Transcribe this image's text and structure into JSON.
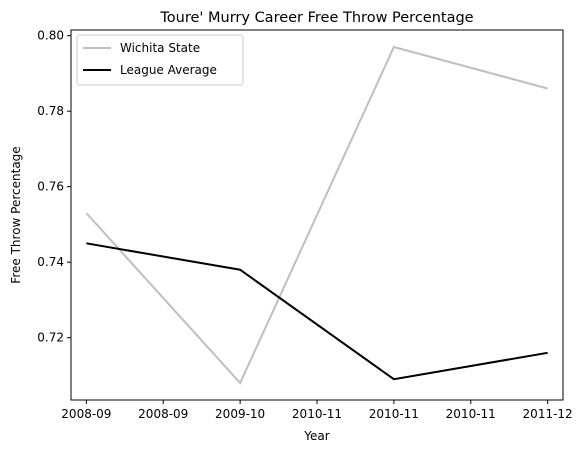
{
  "chart_data": {
    "type": "line",
    "title": "Toure' Murry Career Free Throw Percentage",
    "xlabel": "Year",
    "ylabel": "Free Throw Percentage",
    "x": [
      0,
      1,
      2,
      3
    ],
    "xlim": [
      -0.1,
      3.1
    ],
    "ylim": [
      0.7035,
      0.8015
    ],
    "x_ticks": [
      {
        "value": 0,
        "label": "2008-09"
      },
      {
        "value": 0.5,
        "label": "2008-09"
      },
      {
        "value": 1,
        "label": "2009-10"
      },
      {
        "value": 1.5,
        "label": "2010-11"
      },
      {
        "value": 2,
        "label": "2010-11"
      },
      {
        "value": 2.5,
        "label": "2010-11"
      },
      {
        "value": 3,
        "label": "2011-12"
      }
    ],
    "y_ticks": [
      {
        "value": 0.72,
        "label": "0.72"
      },
      {
        "value": 0.74,
        "label": "0.74"
      },
      {
        "value": 0.76,
        "label": "0.76"
      },
      {
        "value": 0.78,
        "label": "0.78"
      },
      {
        "value": 0.8,
        "label": "0.80"
      }
    ],
    "grid": false,
    "legend_position": "top-left",
    "series": [
      {
        "name": "Wichita State",
        "color": "#bfbfbf",
        "values": [
          0.753,
          0.708,
          0.797,
          0.786
        ]
      },
      {
        "name": "League Average",
        "color": "#000000",
        "values": [
          0.745,
          0.738,
          0.709,
          0.716
        ]
      }
    ]
  }
}
